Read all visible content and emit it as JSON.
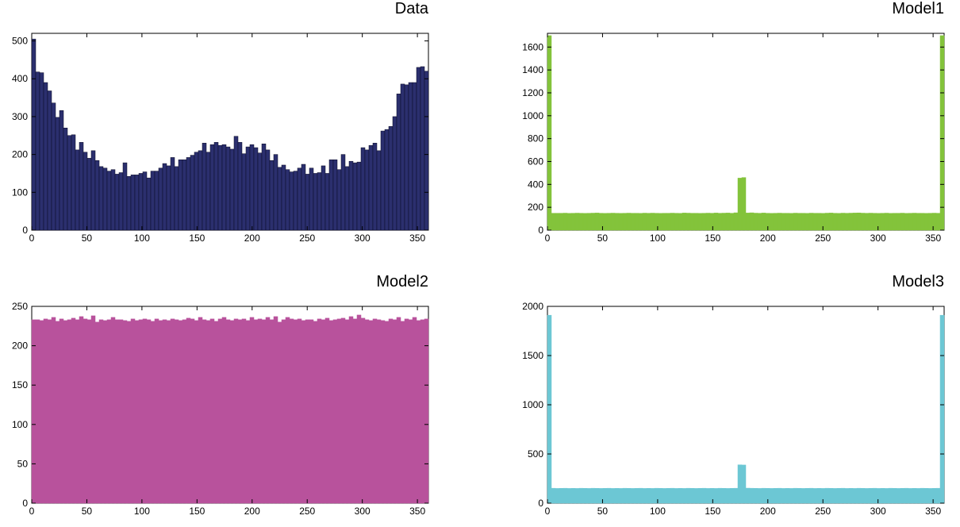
{
  "chart_data": [
    {
      "type": "bar",
      "title": "Data",
      "color": "#2b2f6e",
      "edge": "#0b0b25",
      "xlim": [
        0,
        360
      ],
      "ylim": [
        0,
        520
      ],
      "xticks": [
        0,
        50,
        100,
        150,
        200,
        250,
        300,
        350
      ],
      "yticks": [
        0,
        100,
        200,
        300,
        400,
        500
      ],
      "binwidth": 3.6,
      "values": [
        505,
        418,
        416,
        390,
        368,
        336,
        298,
        316,
        270,
        250,
        252,
        212,
        232,
        206,
        190,
        210,
        184,
        168,
        164,
        156,
        160,
        148,
        152,
        178,
        142,
        146,
        146,
        150,
        154,
        138,
        156,
        156,
        164,
        176,
        170,
        192,
        168,
        186,
        186,
        192,
        198,
        206,
        210,
        230,
        206,
        226,
        232,
        224,
        226,
        220,
        214,
        248,
        232,
        202,
        220,
        226,
        218,
        204,
        228,
        212,
        184,
        200,
        166,
        172,
        160,
        154,
        156,
        164,
        174,
        148,
        164,
        150,
        152,
        170,
        150,
        186,
        186,
        160,
        200,
        168,
        182,
        178,
        180,
        218,
        212,
        224,
        230,
        210,
        262,
        266,
        274,
        300,
        360,
        386,
        384,
        390,
        390,
        430,
        432,
        420
      ]
    },
    {
      "type": "bar",
      "title": "Model1",
      "color": "#83c33b",
      "edge": "#83c33b",
      "xlim": [
        0,
        360
      ],
      "ylim": [
        0,
        1720
      ],
      "xticks": [
        0,
        50,
        100,
        150,
        200,
        250,
        300,
        350
      ],
      "yticks": [
        0,
        200,
        400,
        600,
        800,
        1000,
        1200,
        1400,
        1600
      ],
      "binwidth": 3.6,
      "values": [
        1700,
        148,
        148,
        148,
        149,
        147,
        148,
        149,
        148,
        147,
        148,
        149,
        150,
        148,
        147,
        148,
        149,
        148,
        147,
        148,
        149,
        148,
        148,
        147,
        149,
        148,
        149,
        148,
        147,
        148,
        148,
        149,
        148,
        147,
        150,
        149,
        148,
        148,
        147,
        148,
        149,
        148,
        150,
        148,
        149,
        150,
        148,
        152,
        455,
        460,
        150,
        152,
        149,
        148,
        150,
        148,
        147,
        148,
        149,
        148,
        148,
        147,
        149,
        148,
        148,
        147,
        149,
        148,
        148,
        147,
        149,
        150,
        148,
        147,
        149,
        148,
        149,
        150,
        151,
        149,
        148,
        149,
        148,
        147,
        148,
        149,
        147,
        148,
        148,
        149,
        147,
        148,
        149,
        148,
        148,
        147,
        148,
        149,
        148,
        1700
      ]
    },
    {
      "type": "bar",
      "title": "Model2",
      "color": "#b8529c",
      "edge": "#b8529c",
      "xlim": [
        0,
        360
      ],
      "ylim": [
        0,
        250
      ],
      "xticks": [
        0,
        50,
        100,
        150,
        200,
        250,
        300,
        350
      ],
      "yticks": [
        0,
        50,
        100,
        150,
        200,
        250
      ],
      "binwidth": 3.6,
      "values": [
        233,
        233,
        232,
        234,
        233,
        236,
        231,
        234,
        232,
        233,
        235,
        233,
        237,
        234,
        233,
        238,
        230,
        233,
        232,
        233,
        236,
        233,
        233,
        232,
        231,
        234,
        232,
        233,
        234,
        233,
        231,
        234,
        232,
        233,
        232,
        234,
        233,
        232,
        233,
        235,
        234,
        232,
        236,
        233,
        232,
        234,
        231,
        234,
        236,
        233,
        232,
        234,
        233,
        234,
        232,
        236,
        233,
        234,
        233,
        236,
        233,
        237,
        230,
        233,
        236,
        234,
        233,
        234,
        232,
        233,
        233,
        231,
        234,
        233,
        235,
        232,
        233,
        234,
        235,
        233,
        237,
        234,
        239,
        235,
        233,
        232,
        234,
        233,
        232,
        231,
        234,
        233,
        236,
        231,
        234,
        233,
        236,
        232,
        233,
        234
      ]
    },
    {
      "type": "bar",
      "title": "Model3",
      "color": "#6cc7d4",
      "edge": "#6cc7d4",
      "xlim": [
        0,
        360
      ],
      "ylim": [
        0,
        2000
      ],
      "xticks": [
        0,
        50,
        100,
        150,
        200,
        250,
        300,
        350
      ],
      "yticks": [
        0,
        500,
        1000,
        1500,
        2000
      ],
      "binwidth": 3.6,
      "values": [
        1910,
        152,
        150,
        151,
        152,
        150,
        151,
        150,
        152,
        151,
        150,
        152,
        151,
        150,
        151,
        152,
        150,
        151,
        150,
        152,
        151,
        150,
        151,
        152,
        150,
        151,
        150,
        152,
        151,
        150,
        151,
        152,
        150,
        151,
        150,
        152,
        151,
        150,
        151,
        152,
        150,
        151,
        150,
        152,
        151,
        150,
        151,
        152,
        390,
        388,
        153,
        152,
        151,
        150,
        152,
        151,
        150,
        151,
        152,
        150,
        151,
        150,
        152,
        151,
        150,
        151,
        152,
        150,
        151,
        150,
        152,
        151,
        150,
        151,
        152,
        150,
        151,
        150,
        152,
        151,
        150,
        151,
        152,
        150,
        151,
        150,
        152,
        151,
        150,
        151,
        152,
        150,
        151,
        150,
        152,
        151,
        150,
        151,
        152,
        1910
      ]
    }
  ]
}
